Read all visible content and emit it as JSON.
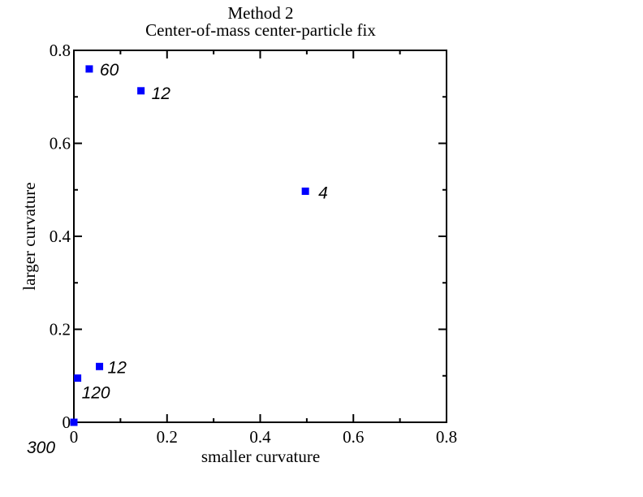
{
  "chart_data": {
    "type": "scatter",
    "title": "Method 2",
    "subtitle": "Center-of-mass center-particle fix",
    "xlabel": "smaller curvature",
    "ylabel": "larger curvature",
    "xlim": [
      0,
      0.8
    ],
    "ylim": [
      0,
      0.8
    ],
    "x_ticks": [
      0,
      0.2,
      0.4,
      0.6,
      0.8
    ],
    "y_ticks": [
      0,
      0.2,
      0.4,
      0.6,
      0.8
    ],
    "x_tick_labels": [
      "0",
      "0.2",
      "0.4",
      "0.6",
      "0.8"
    ],
    "y_tick_labels": [
      "0",
      "0.2",
      "0.4",
      "0.6",
      "0.8"
    ],
    "grid": false,
    "marker": "square",
    "marker_color": "#0000ff",
    "points": [
      {
        "x": 0.0,
        "y": 0.0,
        "label": "300"
      },
      {
        "x": 0.008,
        "y": 0.095,
        "label": "120"
      },
      {
        "x": 0.055,
        "y": 0.12,
        "label": "12"
      },
      {
        "x": 0.033,
        "y": 0.76,
        "label": "60"
      },
      {
        "x": 0.144,
        "y": 0.713,
        "label": "12"
      },
      {
        "x": 0.497,
        "y": 0.497,
        "label": "4"
      }
    ]
  }
}
